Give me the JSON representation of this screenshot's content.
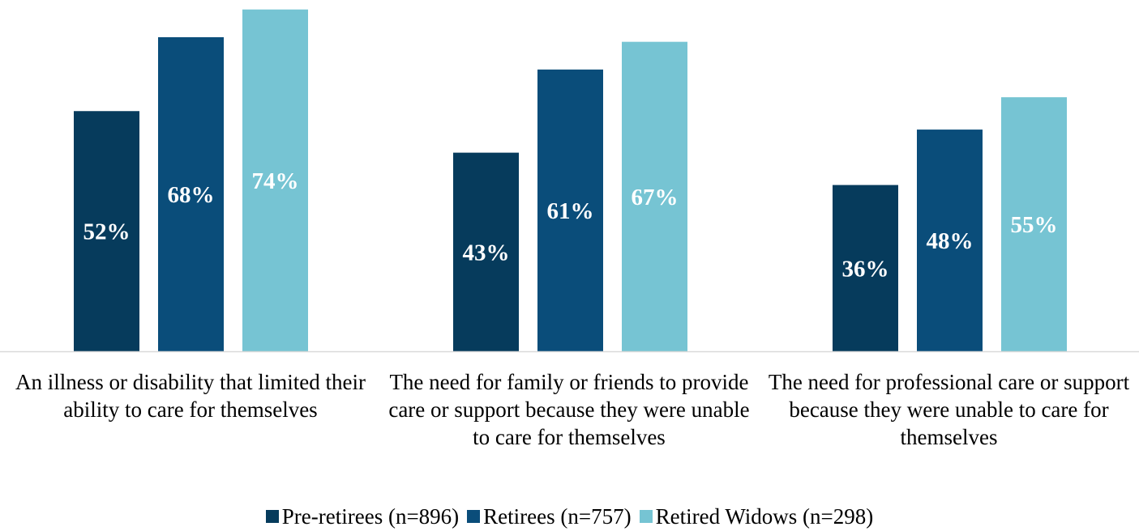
{
  "chart_data": {
    "type": "bar",
    "categories": [
      "An illness or disability that limited their ability to care for themselves",
      "The need for family or friends to provide care or support because they were unable to care for themselves",
      "The need for professional care or support because they were unable to care for themselves"
    ],
    "series": [
      {
        "name": "Pre-retirees (n=896)",
        "values": [
          52,
          43,
          36
        ],
        "labels": [
          "52%",
          "43%",
          "36%"
        ],
        "color": "#063b5c"
      },
      {
        "name": "Retirees (n=757)",
        "values": [
          68,
          61,
          48
        ],
        "labels": [
          "68%",
          "61%",
          "48%"
        ],
        "color": "#0a4d7a"
      },
      {
        "name": "Retired Widows (n=298)",
        "values": [
          74,
          67,
          55
        ],
        "labels": [
          "74%",
          "67%",
          "55%"
        ],
        "color": "#76c4d3"
      }
    ],
    "ylim": [
      0,
      75
    ],
    "grid": false,
    "legend_position": "bottom",
    "title": "",
    "xlabel": "",
    "ylabel": ""
  }
}
